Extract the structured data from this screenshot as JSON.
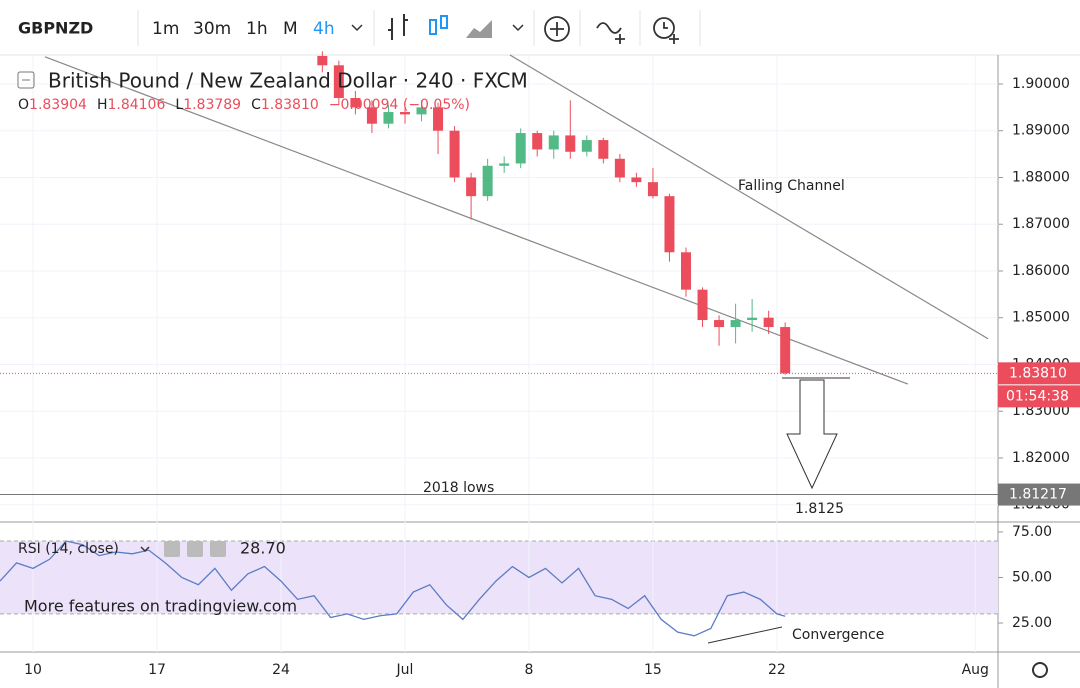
{
  "toolbar": {
    "symbol": "GBPNZD",
    "intervals": [
      "1m",
      "30m",
      "1h",
      "M",
      "4h"
    ]
  },
  "chart_data": {
    "type": "candlestick",
    "title": "British Pound / New Zealand Dollar · 240 · FXCM",
    "legend": {
      "o_key": "O",
      "o": "1.83904",
      "h_key": "H",
      "h": "1.84106",
      "l_key": "L",
      "l": "1.83789",
      "c_key": "C",
      "c": "1.83810",
      "change": "−0.00094 (−0.05%)"
    },
    "up_color": "#53b987",
    "down_color": "#eb4d5c",
    "x": [
      70,
      74,
      78,
      82,
      86,
      90,
      94,
      98,
      102,
      106,
      110,
      114,
      118,
      122,
      126,
      130,
      134,
      138,
      142,
      146,
      150,
      154,
      158,
      162,
      166,
      170,
      174,
      178,
      182
    ],
    "open": [
      1.906,
      1.904,
      1.897,
      1.895,
      1.8915,
      1.894,
      1.8935,
      1.895,
      1.89,
      1.88,
      1.876,
      1.8825,
      1.883,
      1.8895,
      1.886,
      1.889,
      1.8855,
      1.888,
      1.884,
      1.88,
      1.879,
      1.876,
      1.864,
      1.856,
      1.8495,
      1.848,
      1.8495,
      1.85,
      1.848
    ],
    "high": [
      1.907,
      1.905,
      1.8985,
      1.8965,
      1.8955,
      1.896,
      1.8965,
      1.896,
      1.891,
      1.881,
      1.884,
      1.8845,
      1.8905,
      1.89,
      1.89,
      1.8965,
      1.889,
      1.8885,
      1.885,
      1.881,
      1.882,
      1.8765,
      1.865,
      1.8565,
      1.8505,
      1.853,
      1.854,
      1.8515,
      1.849
    ],
    "low": [
      1.9025,
      1.8955,
      1.8935,
      1.8895,
      1.8905,
      1.8915,
      1.892,
      1.885,
      1.879,
      1.871,
      1.875,
      1.881,
      1.882,
      1.8845,
      1.884,
      1.884,
      1.8845,
      1.883,
      1.879,
      1.878,
      1.8755,
      1.862,
      1.8545,
      1.848,
      1.844,
      1.8445,
      1.847,
      1.8465,
      1.8378
    ],
    "close": [
      1.904,
      1.897,
      1.895,
      1.8915,
      1.894,
      1.8935,
      1.895,
      1.89,
      1.88,
      1.876,
      1.8825,
      1.883,
      1.8895,
      1.886,
      1.889,
      1.8855,
      1.888,
      1.884,
      1.88,
      1.879,
      1.876,
      1.864,
      1.856,
      1.8495,
      1.848,
      1.8495,
      1.85,
      1.848,
      1.8381
    ],
    "xlim": [
      -8,
      233.5
    ],
    "xticks": [
      {
        "value": 0,
        "label": "10"
      },
      {
        "value": 30,
        "label": "17"
      },
      {
        "value": 60,
        "label": "24"
      },
      {
        "value": 90,
        "label": "Jul"
      },
      {
        "value": 120,
        "label": "8"
      },
      {
        "value": 150,
        "label": "15"
      },
      {
        "value": 180,
        "label": "22"
      },
      {
        "value": 228,
        "label": "Aug"
      }
    ],
    "ylim": [
      1.8063,
      1.9062
    ],
    "yticks": [
      {
        "value": 1.81,
        "label": "1.81000"
      },
      {
        "value": 1.82,
        "label": "1.82000"
      },
      {
        "value": 1.83,
        "label": "1.83000"
      },
      {
        "value": 1.84,
        "label": "1.84000"
      },
      {
        "value": 1.85,
        "label": "1.85000"
      },
      {
        "value": 1.86,
        "label": "1.86000"
      },
      {
        "value": 1.87,
        "label": "1.87000"
      },
      {
        "value": 1.88,
        "label": "1.88000"
      },
      {
        "value": 1.89,
        "label": "1.89000"
      },
      {
        "value": 1.9,
        "label": "1.90000"
      }
    ],
    "last_price": {
      "value": 1.8381,
      "label": "1.83810"
    },
    "countdown": "01:54:38",
    "support": {
      "value": 1.81217,
      "label": "1.81217"
    },
    "trend_lines": [
      {
        "x": [
          115.4,
          231.1
        ],
        "y": [
          1.9062,
          1.8455
        ]
      },
      {
        "x": [
          2.9,
          211.7
        ],
        "y": [
          1.9058,
          1.8358
        ]
      }
    ],
    "annotations": [
      "Falling Channel",
      "2018 lows",
      "1.8125"
    ],
    "rsi": {
      "title": "RSI (14, close)",
      "value_label": "28.70",
      "promo": "More features on tradingview.com",
      "color": "#5b7cc4",
      "x": [
        -8,
        -4,
        0,
        4,
        8,
        12,
        16,
        20,
        24,
        28,
        32,
        36,
        40,
        44,
        48,
        52,
        56,
        60,
        64,
        68,
        72,
        76,
        80,
        84,
        88,
        92,
        96,
        100,
        104,
        108,
        112,
        116,
        120,
        124,
        128,
        132,
        136,
        140,
        144,
        148,
        152,
        156,
        160,
        164,
        168,
        172,
        176,
        180,
        182
      ],
      "values": [
        48,
        58,
        55,
        60,
        70,
        68,
        62,
        64,
        63,
        65,
        58,
        50,
        46,
        55,
        43,
        52,
        56,
        48,
        38,
        40,
        28,
        30,
        27,
        29,
        30,
        42,
        46,
        35,
        27,
        38,
        48,
        56,
        50,
        55,
        47,
        55,
        40,
        38,
        33,
        40,
        27,
        20,
        18,
        22,
        40,
        42,
        38,
        30,
        28.7
      ],
      "ylim": [
        9.1,
        79.9
      ],
      "band": [
        30,
        70
      ],
      "yticks": [
        {
          "value": 25,
          "label": "25.00"
        },
        {
          "value": 50,
          "label": "50.00"
        },
        {
          "value": 75,
          "label": "75.00"
        }
      ],
      "annotation": "Convergence"
    }
  }
}
